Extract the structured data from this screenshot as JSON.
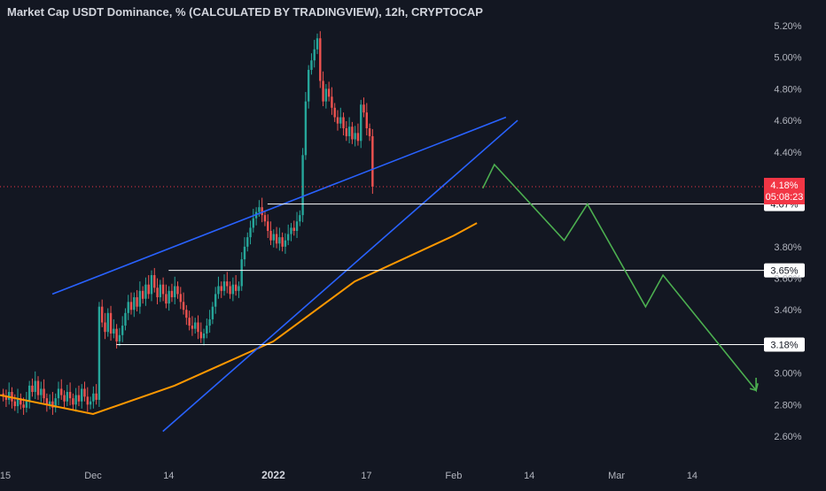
{
  "title": "Market Cap USDT Dominance, % (CALCULATED BY TRADINGVIEW), 12h, CRYPTOCAP",
  "colors": {
    "background": "#131722",
    "up_candle": "#26a69a",
    "down_candle": "#ef5350",
    "trendline": "#2962ff",
    "moving_average": "#ff9800",
    "projection": "#4caf50",
    "level_line": "#ffffff",
    "price_label": "#f23645"
  },
  "price_axis": {
    "ticks": [
      "5.20%",
      "5.00%",
      "4.80%",
      "4.60%",
      "4.40%",
      "3.80%",
      "3.60%",
      "3.40%",
      "3.00%",
      "2.80%",
      "2.60%"
    ]
  },
  "time_axis": {
    "ticks": [
      {
        "label": "15",
        "bold": false
      },
      {
        "label": "Dec",
        "bold": false
      },
      {
        "label": "14",
        "bold": false
      },
      {
        "label": "2022",
        "bold": true
      },
      {
        "label": "17",
        "bold": false
      },
      {
        "label": "Feb",
        "bold": false
      },
      {
        "label": "14",
        "bold": false
      },
      {
        "label": "Mar",
        "bold": false
      },
      {
        "label": "14",
        "bold": false
      }
    ]
  },
  "current_price": {
    "value": "4.18%",
    "countdown": "05:08:23",
    "price": 4.18
  },
  "horizontal_levels": [
    {
      "label": "4.07%",
      "value": 4.07
    },
    {
      "label": "3.65%",
      "value": 3.65
    },
    {
      "label": "3.18%",
      "value": 3.18
    }
  ],
  "chart_data": {
    "type": "candlestick",
    "interval": "12h",
    "y_unit": "%",
    "ylim": [
      2.5,
      5.3
    ],
    "series_close": [
      2.85,
      2.83,
      2.88,
      2.82,
      2.79,
      2.84,
      2.8,
      2.78,
      2.82,
      2.92,
      2.88,
      2.95,
      2.86,
      2.9,
      2.84,
      2.8,
      2.82,
      2.78,
      2.84,
      2.9,
      2.86,
      2.82,
      2.88,
      2.84,
      2.8,
      2.86,
      2.82,
      2.9,
      2.85,
      2.8,
      2.82,
      2.87,
      2.83,
      3.42,
      3.32,
      3.26,
      3.38,
      3.25,
      3.28,
      3.2,
      3.24,
      3.3,
      3.38,
      3.45,
      3.4,
      3.48,
      3.42,
      3.52,
      3.47,
      3.56,
      3.5,
      3.62,
      3.54,
      3.48,
      3.56,
      3.5,
      3.44,
      3.52,
      3.48,
      3.55,
      3.5,
      3.45,
      3.4,
      3.35,
      3.3,
      3.28,
      3.32,
      3.26,
      3.22,
      3.25,
      3.3,
      3.34,
      3.42,
      3.5,
      3.55,
      3.52,
      3.58,
      3.55,
      3.5,
      3.56,
      3.52,
      3.55,
      3.72,
      3.8,
      3.86,
      3.92,
      3.98,
      4.02,
      4.05,
      4.0,
      3.96,
      3.9,
      3.84,
      3.88,
      3.82,
      3.86,
      3.8,
      3.84,
      3.88,
      3.92,
      3.9,
      3.96,
      4.0,
      4.38,
      4.72,
      4.92,
      4.98,
      5.05,
      5.12,
      4.85,
      4.72,
      4.8,
      4.75,
      4.68,
      4.62,
      4.58,
      4.62,
      4.55,
      4.5,
      4.56,
      4.48,
      4.52,
      4.47,
      4.7,
      4.65,
      4.55,
      4.5,
      4.18
    ],
    "moving_average": [
      {
        "date": "2021-11-15",
        "value": 2.86
      },
      {
        "date": "2021-12-01",
        "value": 2.74
      },
      {
        "date": "2021-12-15",
        "value": 2.92
      },
      {
        "date": "2022-01-01",
        "value": 3.2
      },
      {
        "date": "2022-01-15",
        "value": 3.58
      },
      {
        "date": "2022-02-01",
        "value": 3.87
      },
      {
        "date": "2022-02-05",
        "value": 3.95
      }
    ],
    "trendlines": [
      {
        "name": "channel-upper-left",
        "from": {
          "date": "2021-11-24",
          "value": 3.5
        },
        "to": {
          "date": "2022-02-10",
          "value": 4.62
        }
      },
      {
        "name": "channel-lower",
        "from": {
          "date": "2021-12-13",
          "value": 2.63
        },
        "to": {
          "date": "2022-02-12",
          "value": 4.6
        }
      }
    ],
    "projection_path": [
      {
        "date": "2022-02-06",
        "value": 4.17
      },
      {
        "date": "2022-02-08",
        "value": 4.32
      },
      {
        "date": "2022-02-20",
        "value": 3.84
      },
      {
        "date": "2022-02-24",
        "value": 4.07
      },
      {
        "date": "2022-03-06",
        "value": 3.42
      },
      {
        "date": "2022-03-09",
        "value": 3.62
      },
      {
        "date": "2022-03-25",
        "value": 2.89
      },
      {
        "date": "2022-03-25",
        "value": 2.97
      }
    ]
  }
}
